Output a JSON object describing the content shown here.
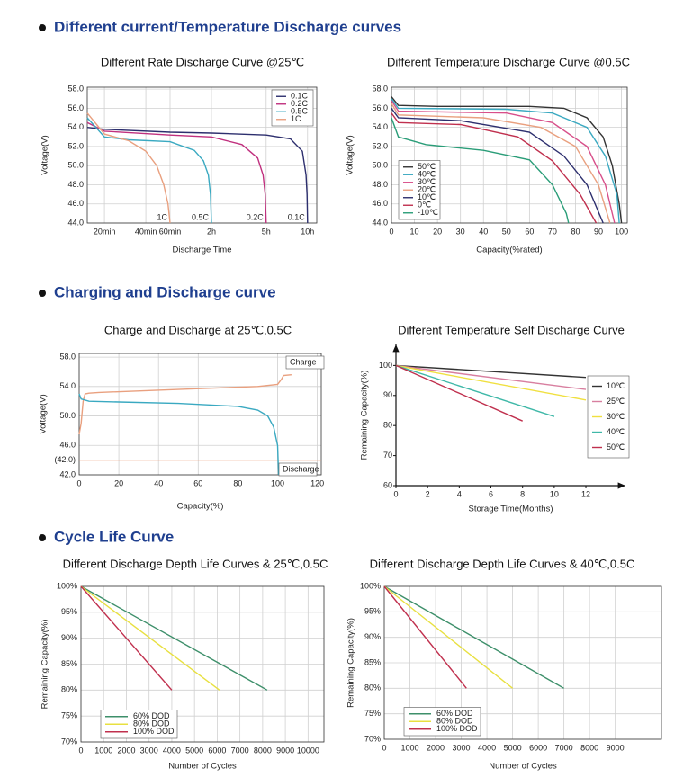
{
  "sections": [
    "Different current/Temperature Discharge curves",
    "Charging and Discharge curve",
    "Cycle Life Curve"
  ],
  "chart_data": [
    {
      "type": "line",
      "title": "Different Rate Discharge Curve @25℃",
      "xlabel": "Discharge Time",
      "ylabel": "Voltage(V)",
      "xscale": "log",
      "xlim": [
        15,
        700
      ],
      "ylim": [
        44,
        58.2
      ],
      "grid": true,
      "legend": "upper right",
      "xticks": [
        {
          "value": 20,
          "label": "20min"
        },
        {
          "value": 40,
          "label": "40min"
        },
        {
          "value": 60,
          "label": "60min"
        },
        {
          "value": 120,
          "label": "2h"
        },
        {
          "value": 300,
          "label": "5h"
        },
        {
          "value": 600,
          "label": "10h"
        }
      ],
      "yticks": [
        {
          "value": 44,
          "label": "44.0"
        },
        {
          "value": 46,
          "label": "46.0"
        },
        {
          "value": 48,
          "label": "48.0"
        },
        {
          "value": 50,
          "label": "50.0"
        },
        {
          "value": 52,
          "label": "52.0"
        },
        {
          "value": 54,
          "label": "54.0"
        },
        {
          "value": 56,
          "label": "56.0"
        },
        {
          "value": 58,
          "label": "58.0"
        }
      ],
      "series": [
        {
          "name": "0.1C",
          "color": "#2d2f6e",
          "x": [
            15,
            20,
            60,
            120,
            300,
            450,
            550,
            585,
            595,
            600
          ],
          "values": [
            54,
            53.8,
            53.5,
            53.4,
            53.2,
            52.8,
            51.5,
            49,
            47,
            44
          ]
        },
        {
          "name": "0.2C",
          "color": "#c0307e",
          "x": [
            15,
            20,
            60,
            120,
            200,
            260,
            285,
            295,
            300
          ],
          "values": [
            54.5,
            53.6,
            53.2,
            53,
            52.2,
            50.8,
            49,
            47,
            44
          ]
        },
        {
          "name": "0.5C",
          "color": "#3aa9c1",
          "x": [
            15,
            20,
            30,
            60,
            90,
            105,
            114,
            118,
            120
          ],
          "values": [
            55,
            53,
            52.7,
            52.5,
            51.6,
            50.5,
            49,
            47,
            44
          ]
        },
        {
          "name": "1C",
          "color": "#e9a07f",
          "x": [
            15,
            20,
            30,
            40,
            48,
            54,
            58,
            60
          ],
          "values": [
            55.5,
            53.3,
            52.6,
            51.5,
            50,
            48,
            46,
            44
          ]
        }
      ]
    },
    {
      "type": "line",
      "title": "Different Temperature Discharge Curve @0.5C",
      "xlabel": "Capacity(%rated)",
      "ylabel": "Voltage(V)",
      "xlim": [
        0,
        102.5
      ],
      "ylim": [
        44,
        58.2
      ],
      "grid": true,
      "legend": "lower left",
      "xticks": [
        0,
        10,
        20,
        30,
        40,
        50,
        60,
        70,
        80,
        90,
        100
      ],
      "yticks": [
        {
          "value": 44,
          "label": "44.0"
        },
        {
          "value": 46,
          "label": "46.0"
        },
        {
          "value": 48,
          "label": "48.0"
        },
        {
          "value": 50,
          "label": "50.0"
        },
        {
          "value": 52,
          "label": "52.0"
        },
        {
          "value": 54,
          "label": "54.0"
        },
        {
          "value": 56,
          "label": "56.0"
        },
        {
          "value": 58,
          "label": "58.0"
        }
      ],
      "series": [
        {
          "name": "50℃",
          "color": "#333333",
          "x": [
            0,
            3,
            20,
            60,
            75,
            85,
            92,
            96,
            99,
            100
          ],
          "values": [
            57.2,
            56.3,
            56.2,
            56.2,
            56,
            55,
            53,
            50,
            46,
            44
          ]
        },
        {
          "name": "40℃",
          "color": "#3aa9c1",
          "x": [
            0,
            3,
            50,
            70,
            85,
            93,
            98,
            99
          ],
          "values": [
            57,
            56,
            55.9,
            55.5,
            54,
            51,
            47,
            44
          ]
        },
        {
          "name": "30℃",
          "color": "#d84f8a",
          "x": [
            0,
            3,
            50,
            70,
            85,
            93,
            97
          ],
          "values": [
            56.8,
            55.7,
            55.5,
            54.5,
            52,
            48,
            44
          ]
        },
        {
          "name": "20℃",
          "color": "#e9a07f",
          "x": [
            0,
            3,
            40,
            65,
            80,
            90,
            95
          ],
          "values": [
            56.5,
            55.3,
            55,
            54,
            52,
            48,
            44
          ]
        },
        {
          "name": "10℃",
          "color": "#2d2f6e",
          "x": [
            0,
            3,
            30,
            60,
            75,
            85,
            92
          ],
          "values": [
            56,
            55,
            54.7,
            53.5,
            51,
            48,
            44
          ]
        },
        {
          "name": "0℃",
          "color": "#c0304e",
          "x": [
            0,
            3,
            30,
            55,
            70,
            82,
            89
          ],
          "values": [
            55.5,
            54.5,
            54.3,
            53,
            50.5,
            47,
            44
          ]
        },
        {
          "name": "-10℃",
          "color": "#2a9d78",
          "x": [
            0,
            3,
            15,
            40,
            60,
            70,
            76,
            77
          ],
          "values": [
            55,
            53,
            52.2,
            51.6,
            50.6,
            48,
            45,
            44
          ]
        }
      ]
    },
    {
      "type": "line",
      "title": "Charge and Discharge at 25℃,0.5C",
      "xlabel": "Capacity(%)",
      "ylabel": "Voltage(V)",
      "xlim": [
        0,
        122
      ],
      "ylim": [
        42,
        58.5
      ],
      "grid": true,
      "ynote": "(42.0)",
      "xticks": [
        0,
        20,
        40,
        60,
        80,
        100,
        120
      ],
      "yticks": [
        {
          "value": 42,
          "label": "42.0"
        },
        {
          "value": 46,
          "label": "46.0"
        },
        {
          "value": 50,
          "label": "50.0"
        },
        {
          "value": 54,
          "label": "54.0"
        },
        {
          "value": 58,
          "label": "58.0"
        }
      ],
      "series": [
        {
          "name": "Charge",
          "color": "#e9a07f",
          "x": [
            0,
            1,
            2,
            3,
            5,
            10,
            50,
            90,
            100,
            102,
            103,
            107
          ],
          "values": [
            47.5,
            49,
            52,
            53,
            53.1,
            53.2,
            53.6,
            54,
            54.3,
            55,
            55.5,
            55.6
          ]
        },
        {
          "name": "Discharge",
          "color": "#3aa9c1",
          "x": [
            0,
            1,
            5,
            20,
            50,
            80,
            90,
            95,
            98,
            100,
            100.5
          ],
          "values": [
            53,
            52.3,
            52,
            51.9,
            51.7,
            51.3,
            50.8,
            50,
            48.5,
            46,
            42
          ]
        }
      ]
    },
    {
      "type": "line",
      "title": "Different Temperature Self Discharge Curve",
      "xlabel": "Storage Time(Months)",
      "ylabel": "Remaining Capacity(%)",
      "xlim": [
        0,
        14.5
      ],
      "ylim": [
        60,
        107
      ],
      "grid": false,
      "legend": "right",
      "xticks": [
        0,
        2,
        4,
        6,
        8,
        10,
        12
      ],
      "yticks": [
        60,
        70,
        80,
        90,
        100
      ],
      "series": [
        {
          "name": "10℃",
          "color": "#333333",
          "x": [
            0,
            12
          ],
          "values": [
            100,
            96
          ]
        },
        {
          "name": "25℃",
          "color": "#d87fa0",
          "x": [
            0,
            12
          ],
          "values": [
            100,
            92
          ]
        },
        {
          "name": "30℃",
          "color": "#f0e040",
          "x": [
            0,
            12
          ],
          "values": [
            100,
            88.5
          ]
        },
        {
          "name": "40℃",
          "color": "#3fb8a8",
          "x": [
            0,
            10
          ],
          "values": [
            100,
            83
          ]
        },
        {
          "name": "50℃",
          "color": "#c0304e",
          "x": [
            0,
            8
          ],
          "values": [
            100,
            81.5
          ]
        }
      ]
    },
    {
      "type": "line",
      "title": "Different Discharge Depth Life Curves & 25℃,0.5C",
      "xlabel": "Number of Cycles",
      "ylabel": "Remaining Capacity(%)",
      "xlim": [
        0,
        10700
      ],
      "ylim": [
        70,
        100
      ],
      "grid": true,
      "legend": "lower left",
      "xticks": [
        0,
        1000,
        2000,
        3000,
        4000,
        5000,
        6000,
        7000,
        8000,
        9000,
        10000
      ],
      "yticks": [
        {
          "value": 70,
          "label": "70%"
        },
        {
          "value": 75,
          "label": "75%"
        },
        {
          "value": 80,
          "label": "80%"
        },
        {
          "value": 85,
          "label": "85%"
        },
        {
          "value": 90,
          "label": "90%"
        },
        {
          "value": 95,
          "label": "95%"
        },
        {
          "value": 100,
          "label": "100%"
        }
      ],
      "series": [
        {
          "name": "60% DOD",
          "color": "#3d8f6a",
          "x": [
            0,
            8200
          ],
          "values": [
            100,
            80
          ]
        },
        {
          "name": "80% DOD",
          "color": "#e8e040",
          "x": [
            0,
            6100
          ],
          "values": [
            100,
            80
          ]
        },
        {
          "name": "100% DOD",
          "color": "#c0304e",
          "x": [
            0,
            4000
          ],
          "values": [
            100,
            80
          ]
        }
      ]
    },
    {
      "type": "line",
      "title": "Different Discharge Depth Life Curves & 40℃,0.5C",
      "xlabel": "Number of Cycles",
      "ylabel": "Remaining Capacity(%)",
      "xlim": [
        0,
        10800
      ],
      "ylim": [
        70,
        100
      ],
      "grid": true,
      "legend": "lower left",
      "xticks": [
        0,
        1000,
        2000,
        3000,
        4000,
        5000,
        6000,
        7000,
        8000,
        9000
      ],
      "yticks": [
        {
          "value": 70,
          "label": "70%"
        },
        {
          "value": 75,
          "label": "75%"
        },
        {
          "value": 80,
          "label": "80%"
        },
        {
          "value": 85,
          "label": "85%"
        },
        {
          "value": 90,
          "label": "90%"
        },
        {
          "value": 95,
          "label": "95%"
        },
        {
          "value": 100,
          "label": "100%"
        }
      ],
      "series": [
        {
          "name": "60% DOD",
          "color": "#3d8f6a",
          "x": [
            0,
            7000
          ],
          "values": [
            100,
            80
          ]
        },
        {
          "name": "80% DOD",
          "color": "#e8e040",
          "x": [
            0,
            5000
          ],
          "values": [
            100,
            80
          ]
        },
        {
          "name": "100% DOD",
          "color": "#c0304e",
          "x": [
            0,
            3200
          ],
          "values": [
            100,
            80
          ]
        }
      ]
    }
  ]
}
